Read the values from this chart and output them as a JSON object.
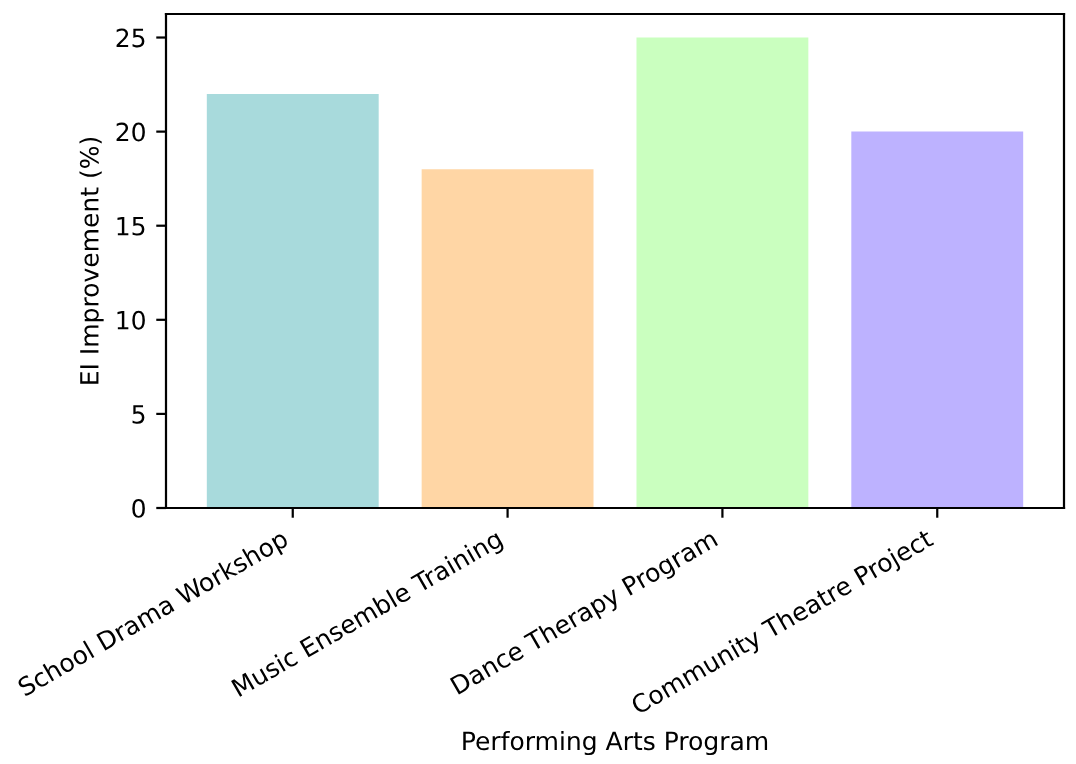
{
  "chart_data": {
    "type": "bar",
    "xlabel": "Performing Arts Program",
    "ylabel": "EI Improvement (%)",
    "categories": [
      "School Drama Workshop",
      "Music Ensemble Training",
      "Dance Therapy Program",
      "Community Theatre Project"
    ],
    "values": [
      22,
      18,
      25,
      20
    ],
    "colors": [
      "#a8dadc",
      "#ffd6a5",
      "#caffbf",
      "#bdb2ff"
    ],
    "ylim": [
      0,
      26.25
    ],
    "yticks": [
      0,
      5,
      10,
      15,
      20,
      25
    ],
    "grid": false
  }
}
